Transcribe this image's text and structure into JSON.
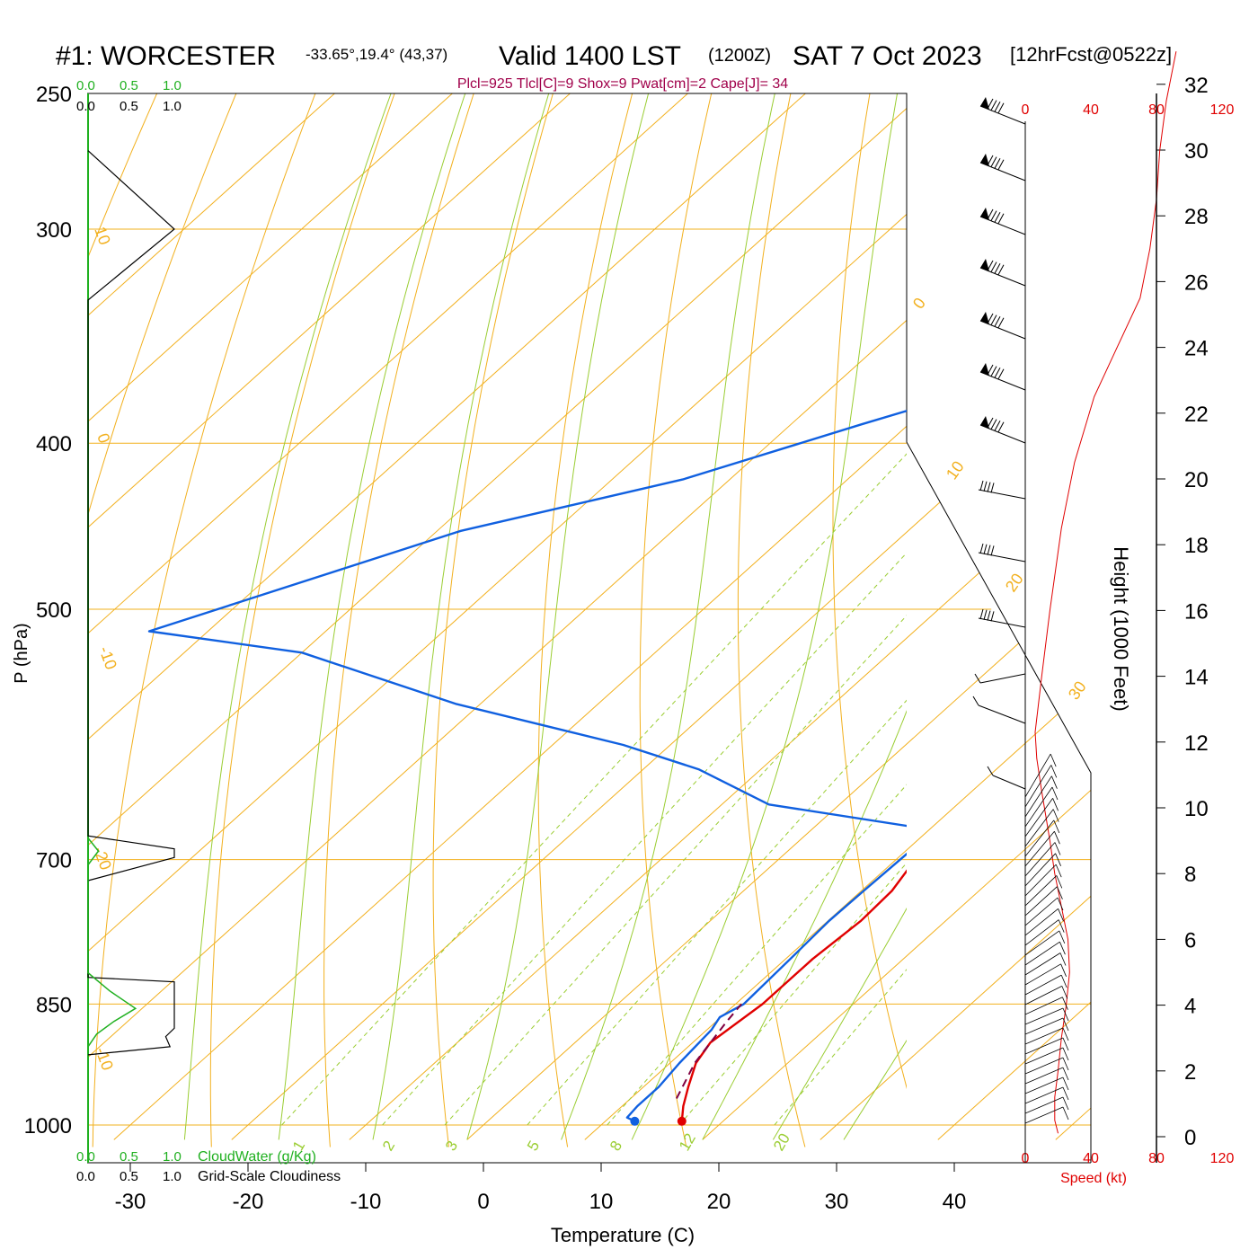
{
  "header": {
    "station": "#1: WORCESTER",
    "coords": "-33.65°,19.4° (43,37)",
    "valid": "Valid 1400 LST",
    "utc": "(1200Z)",
    "date": "SAT 7 Oct 2023",
    "forecast": "[12hrFcst@0522z]",
    "indices": "Plcl=925 Tlcl[C]=9 Shox=9 Pwat[cm]=2 Cape[J]= 34"
  },
  "chart_data": {
    "type": "line",
    "subtype": "skew-T log-P sounding",
    "xlabel": "Temperature (C)",
    "ylabel": "P (hPa)",
    "y2label": "Height (1000 Feet)",
    "x_ticks": [
      "-30",
      "-20",
      "-10",
      "0",
      "10",
      "20",
      "30",
      "40"
    ],
    "y_ticks": [
      "250",
      "300",
      "400",
      "500",
      "700",
      "850",
      "1000"
    ],
    "height_ticks": [
      "0",
      "2",
      "4",
      "6",
      "8",
      "10",
      "12",
      "14",
      "16",
      "18",
      "20",
      "22",
      "24",
      "26",
      "28",
      "30",
      "32"
    ],
    "xlim": [
      -33,
      37
    ],
    "ylim": [
      1020,
      250
    ],
    "temperature": {
      "name": "Temperature",
      "color": "#e00000",
      "points": [
        [
          16.5,
          995
        ],
        [
          15.2,
          975
        ],
        [
          13.8,
          950
        ],
        [
          12.2,
          920
        ],
        [
          11.5,
          895
        ],
        [
          12.3,
          850
        ],
        [
          12.3,
          800
        ],
        [
          12.8,
          760
        ],
        [
          12.6,
          730
        ],
        [
          11.3,
          690
        ],
        [
          11.2,
          670
        ],
        [
          12.6,
          650
        ],
        [
          12.5,
          600
        ],
        [
          11.2,
          550
        ],
        [
          7.5,
          500
        ],
        [
          2.8,
          450
        ],
        [
          -0.2,
          400
        ],
        [
          -3.2,
          350
        ],
        [
          -5.5,
          300
        ],
        [
          -6.3,
          275
        ],
        [
          -6.5,
          260
        ]
      ]
    },
    "dewpoint": {
      "name": "Dewpoint",
      "color": "#1060e0",
      "points": [
        [
          12.5,
          995
        ],
        [
          11.5,
          990
        ],
        [
          11.3,
          975
        ],
        [
          11.3,
          950
        ],
        [
          10.8,
          920
        ],
        [
          10.4,
          880
        ],
        [
          9.9,
          865
        ],
        [
          10.7,
          850
        ],
        [
          10.4,
          800
        ],
        [
          10.1,
          760
        ],
        [
          10.2,
          730
        ],
        [
          10.4,
          690
        ],
        [
          8.5,
          670
        ],
        [
          -6,
          650
        ],
        [
          -15.3,
          620
        ],
        [
          -24,
          600
        ],
        [
          -42,
          568
        ],
        [
          -60,
          530
        ],
        [
          -75,
          515
        ],
        [
          -58,
          450
        ],
        [
          -44,
          420
        ],
        [
          -34,
          390
        ],
        [
          -25,
          366
        ],
        [
          -15,
          340
        ],
        [
          -12,
          320
        ],
        [
          -11,
          300
        ],
        [
          -12,
          280
        ],
        [
          -14.5,
          262
        ]
      ]
    },
    "parcel": {
      "name": "Parcel",
      "color": "#800040",
      "points": [
        [
          13.9,
          965
        ],
        [
          12.1,
          920
        ],
        [
          10.9,
          870
        ],
        [
          10.5,
          850
        ]
      ]
    },
    "surface_marks": [
      {
        "name": "Surface Temperature",
        "value": 16.5,
        "pressure": 995,
        "color": "#e00000"
      },
      {
        "name": "Surface Dewpoint",
        "value": 12.5,
        "pressure": 995,
        "color": "#1060e0"
      }
    ],
    "isotherm_labels": [
      "10",
      "0",
      "-10",
      "-20",
      "-10",
      "0",
      "10",
      "20",
      "30"
    ],
    "dry_adiabat_labels": [],
    "mixing_ratio_labels": [
      "1",
      "2",
      "3",
      "5",
      "8",
      "12",
      "20"
    ],
    "cloud_panel": {
      "cloudwater_label": "CloudWater (g/Kg)",
      "cloudiness_label": "Grid-Scale Cloudiness",
      "green_ticks": [
        "0.0",
        "0.5",
        "1.0"
      ],
      "black_ticks": [
        "0.0",
        "0.5",
        "1.0"
      ],
      "green_color": "#20b020",
      "cloudiness": [
        [
          0,
          270
        ],
        [
          1.0,
          300
        ],
        [
          0,
          330
        ],
        [
          0,
          678
        ],
        [
          1.0,
          690
        ],
        [
          1.0,
          698
        ],
        [
          0,
          720
        ],
        [
          0,
          820
        ],
        [
          1.0,
          825
        ],
        [
          1.0,
          878
        ],
        [
          0.9,
          888
        ],
        [
          0.95,
          900
        ],
        [
          0,
          910
        ]
      ],
      "cloudwater": [
        [
          0,
          680
        ],
        [
          0.12,
          692
        ],
        [
          0,
          705
        ],
        [
          0,
          815
        ],
        [
          0.25,
          835
        ],
        [
          0.55,
          855
        ],
        [
          0.3,
          870
        ],
        [
          0.1,
          885
        ],
        [
          0,
          900
        ]
      ]
    },
    "wind_speed": {
      "label": "Speed (kt)",
      "ticks": [
        "0",
        "40",
        "80",
        "120"
      ],
      "color": "#e00000",
      "profile": [
        [
          20,
          0.1
        ],
        [
          18,
          0.5
        ],
        [
          18,
          1.2
        ],
        [
          20,
          2.0
        ],
        [
          22,
          3.0
        ],
        [
          25,
          4.0
        ],
        [
          27,
          5.0
        ],
        [
          26,
          6.0
        ],
        [
          22,
          7.0
        ],
        [
          18,
          8.0
        ],
        [
          15,
          9.0
        ],
        [
          10,
          10.5
        ],
        [
          7,
          11.5
        ],
        [
          6,
          12.3
        ],
        [
          10,
          14
        ],
        [
          15,
          16
        ],
        [
          22,
          18.5
        ],
        [
          30,
          20.5
        ],
        [
          42,
          22.5
        ],
        [
          56,
          24
        ],
        [
          70,
          25.5
        ],
        [
          76,
          27
        ],
        [
          80,
          28.5
        ],
        [
          82,
          30
        ],
        [
          86,
          31.5
        ],
        [
          92,
          33
        ]
      ]
    }
  }
}
